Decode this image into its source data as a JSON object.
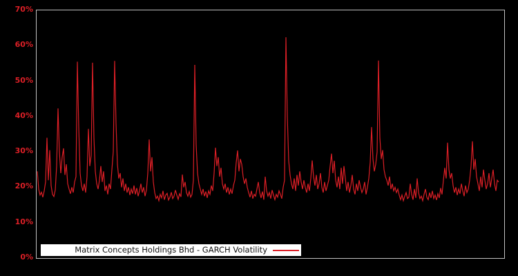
{
  "legend": {
    "label": "Matrix Concepts Holdings Bhd - GARCH Volatility"
  },
  "colors": {
    "background": "#000000",
    "series": "#dc1f26",
    "axis_label": "#dc1f26",
    "frame": "#c4c4c4",
    "legend_bg": "#ffffff",
    "legend_text": "#111111"
  },
  "chart_data": {
    "type": "line",
    "title": "Matrix Concepts Holdings Bhd - GARCH Volatility",
    "xlabel": "",
    "ylabel": "",
    "ylim": [
      0,
      70
    ],
    "y_ticks": [
      "0%",
      "10%",
      "20%",
      "30%",
      "40%",
      "50%",
      "60%",
      "70%"
    ],
    "x_ticks": [],
    "grid": false,
    "legend_position": "bottom-inside",
    "series": [
      {
        "name": "Matrix Concepts Holdings Bhd - GARCH Volatility",
        "color": "#dc1f26",
        "unit": "%",
        "values_pct": [
          24.5,
          19.5,
          17.8,
          18.6,
          17.2,
          19.0,
          21.5,
          34.0,
          22.0,
          30.5,
          20.5,
          18.0,
          17.4,
          19.2,
          26.0,
          42.3,
          30.0,
          24.0,
          28.5,
          31.0,
          23.5,
          26.5,
          21.0,
          19.5,
          18.2,
          20.0,
          18.5,
          21.5,
          23.0,
          55.5,
          37.0,
          24.0,
          20.5,
          19.0,
          21.0,
          18.5,
          23.0,
          36.5,
          26.0,
          29.0,
          55.2,
          34.0,
          24.5,
          21.0,
          19.5,
          22.0,
          26.0,
          21.5,
          24.5,
          19.0,
          20.5,
          18.0,
          21.0,
          19.5,
          25.0,
          30.0,
          55.7,
          38.0,
          26.5,
          22.5,
          24.0,
          20.0,
          22.5,
          19.0,
          21.0,
          18.5,
          20.0,
          17.8,
          19.5,
          18.2,
          20.5,
          18.0,
          19.8,
          17.5,
          19.0,
          21.0,
          18.5,
          20.0,
          17.5,
          19.2,
          24.0,
          33.5,
          24.5,
          28.5,
          21.5,
          18.5,
          16.8,
          17.5,
          16.2,
          18.0,
          17.0,
          19.0,
          16.5,
          17.8,
          18.3,
          16.4,
          17.2,
          18.6,
          16.8,
          17.5,
          19.2,
          17.8,
          16.6,
          18.2,
          17.3,
          23.6,
          20.0,
          21.5,
          18.5,
          17.5,
          18.8,
          17.2,
          18.0,
          22.0,
          54.6,
          32.0,
          24.0,
          21.0,
          19.5,
          18.0,
          19.5,
          17.5,
          18.8,
          17.0,
          19.0,
          18.0,
          20.5,
          19.0,
          24.0,
          31.2,
          26.0,
          28.5,
          23.0,
          25.5,
          21.0,
          19.5,
          21.0,
          18.5,
          20.0,
          18.0,
          19.5,
          18.2,
          20.5,
          22.0,
          27.0,
          30.4,
          24.5,
          28.0,
          26.5,
          23.0,
          21.0,
          22.5,
          20.0,
          18.5,
          17.2,
          19.0,
          16.8,
          18.0,
          17.5,
          19.5,
          21.5,
          18.5,
          17.0,
          18.8,
          16.5,
          23.0,
          19.0,
          17.5,
          18.5,
          16.8,
          19.2,
          17.8,
          16.5,
          18.0,
          17.2,
          19.0,
          18.0,
          16.8,
          20.0,
          22.0,
          62.4,
          40.0,
          27.5,
          23.5,
          21.0,
          19.5,
          22.5,
          19.0,
          23.5,
          20.5,
          24.5,
          21.5,
          19.5,
          22.0,
          20.0,
          18.5,
          21.0,
          19.0,
          22.5,
          27.6,
          23.0,
          20.5,
          23.5,
          19.5,
          21.0,
          24.0,
          20.0,
          18.5,
          21.5,
          19.0,
          20.5,
          22.0,
          26.0,
          29.5,
          24.0,
          27.5,
          22.0,
          20.0,
          23.0,
          19.5,
          25.5,
          21.0,
          26.0,
          22.5,
          19.0,
          21.5,
          18.5,
          20.5,
          23.5,
          19.5,
          18.0,
          21.0,
          19.0,
          22.0,
          20.0,
          18.5,
          19.5,
          21.5,
          18.0,
          20.0,
          22.5,
          27.0,
          37.0,
          28.0,
          24.5,
          26.5,
          30.0,
          55.8,
          34.0,
          28.0,
          30.5,
          25.0,
          23.0,
          22.0,
          20.5,
          23.0,
          19.5,
          21.0,
          19.0,
          20.0,
          18.5,
          19.5,
          17.8,
          16.5,
          17.8,
          16.2,
          17.5,
          18.5,
          16.8,
          17.2,
          21.0,
          18.0,
          16.5,
          19.5,
          17.0,
          22.5,
          18.5,
          16.8,
          17.5,
          16.2,
          18.0,
          19.5,
          17.2,
          16.5,
          18.5,
          17.0,
          19.0,
          16.8,
          17.8,
          16.4,
          18.2,
          17.0,
          19.8,
          18.0,
          22.0,
          25.5,
          22.5,
          32.6,
          25.0,
          22.5,
          24.0,
          20.5,
          18.5,
          20.0,
          17.8,
          19.5,
          18.2,
          21.0,
          19.0,
          17.5,
          20.5,
          18.5,
          19.5,
          22.0,
          26.0,
          33.0,
          25.0,
          28.0,
          23.0,
          21.0,
          19.0,
          23.0,
          20.0,
          25.0,
          22.0,
          19.5,
          21.0,
          24.0,
          20.0,
          22.5,
          25.0,
          21.0,
          19.0,
          22.0,
          21.5
        ]
      }
    ]
  }
}
